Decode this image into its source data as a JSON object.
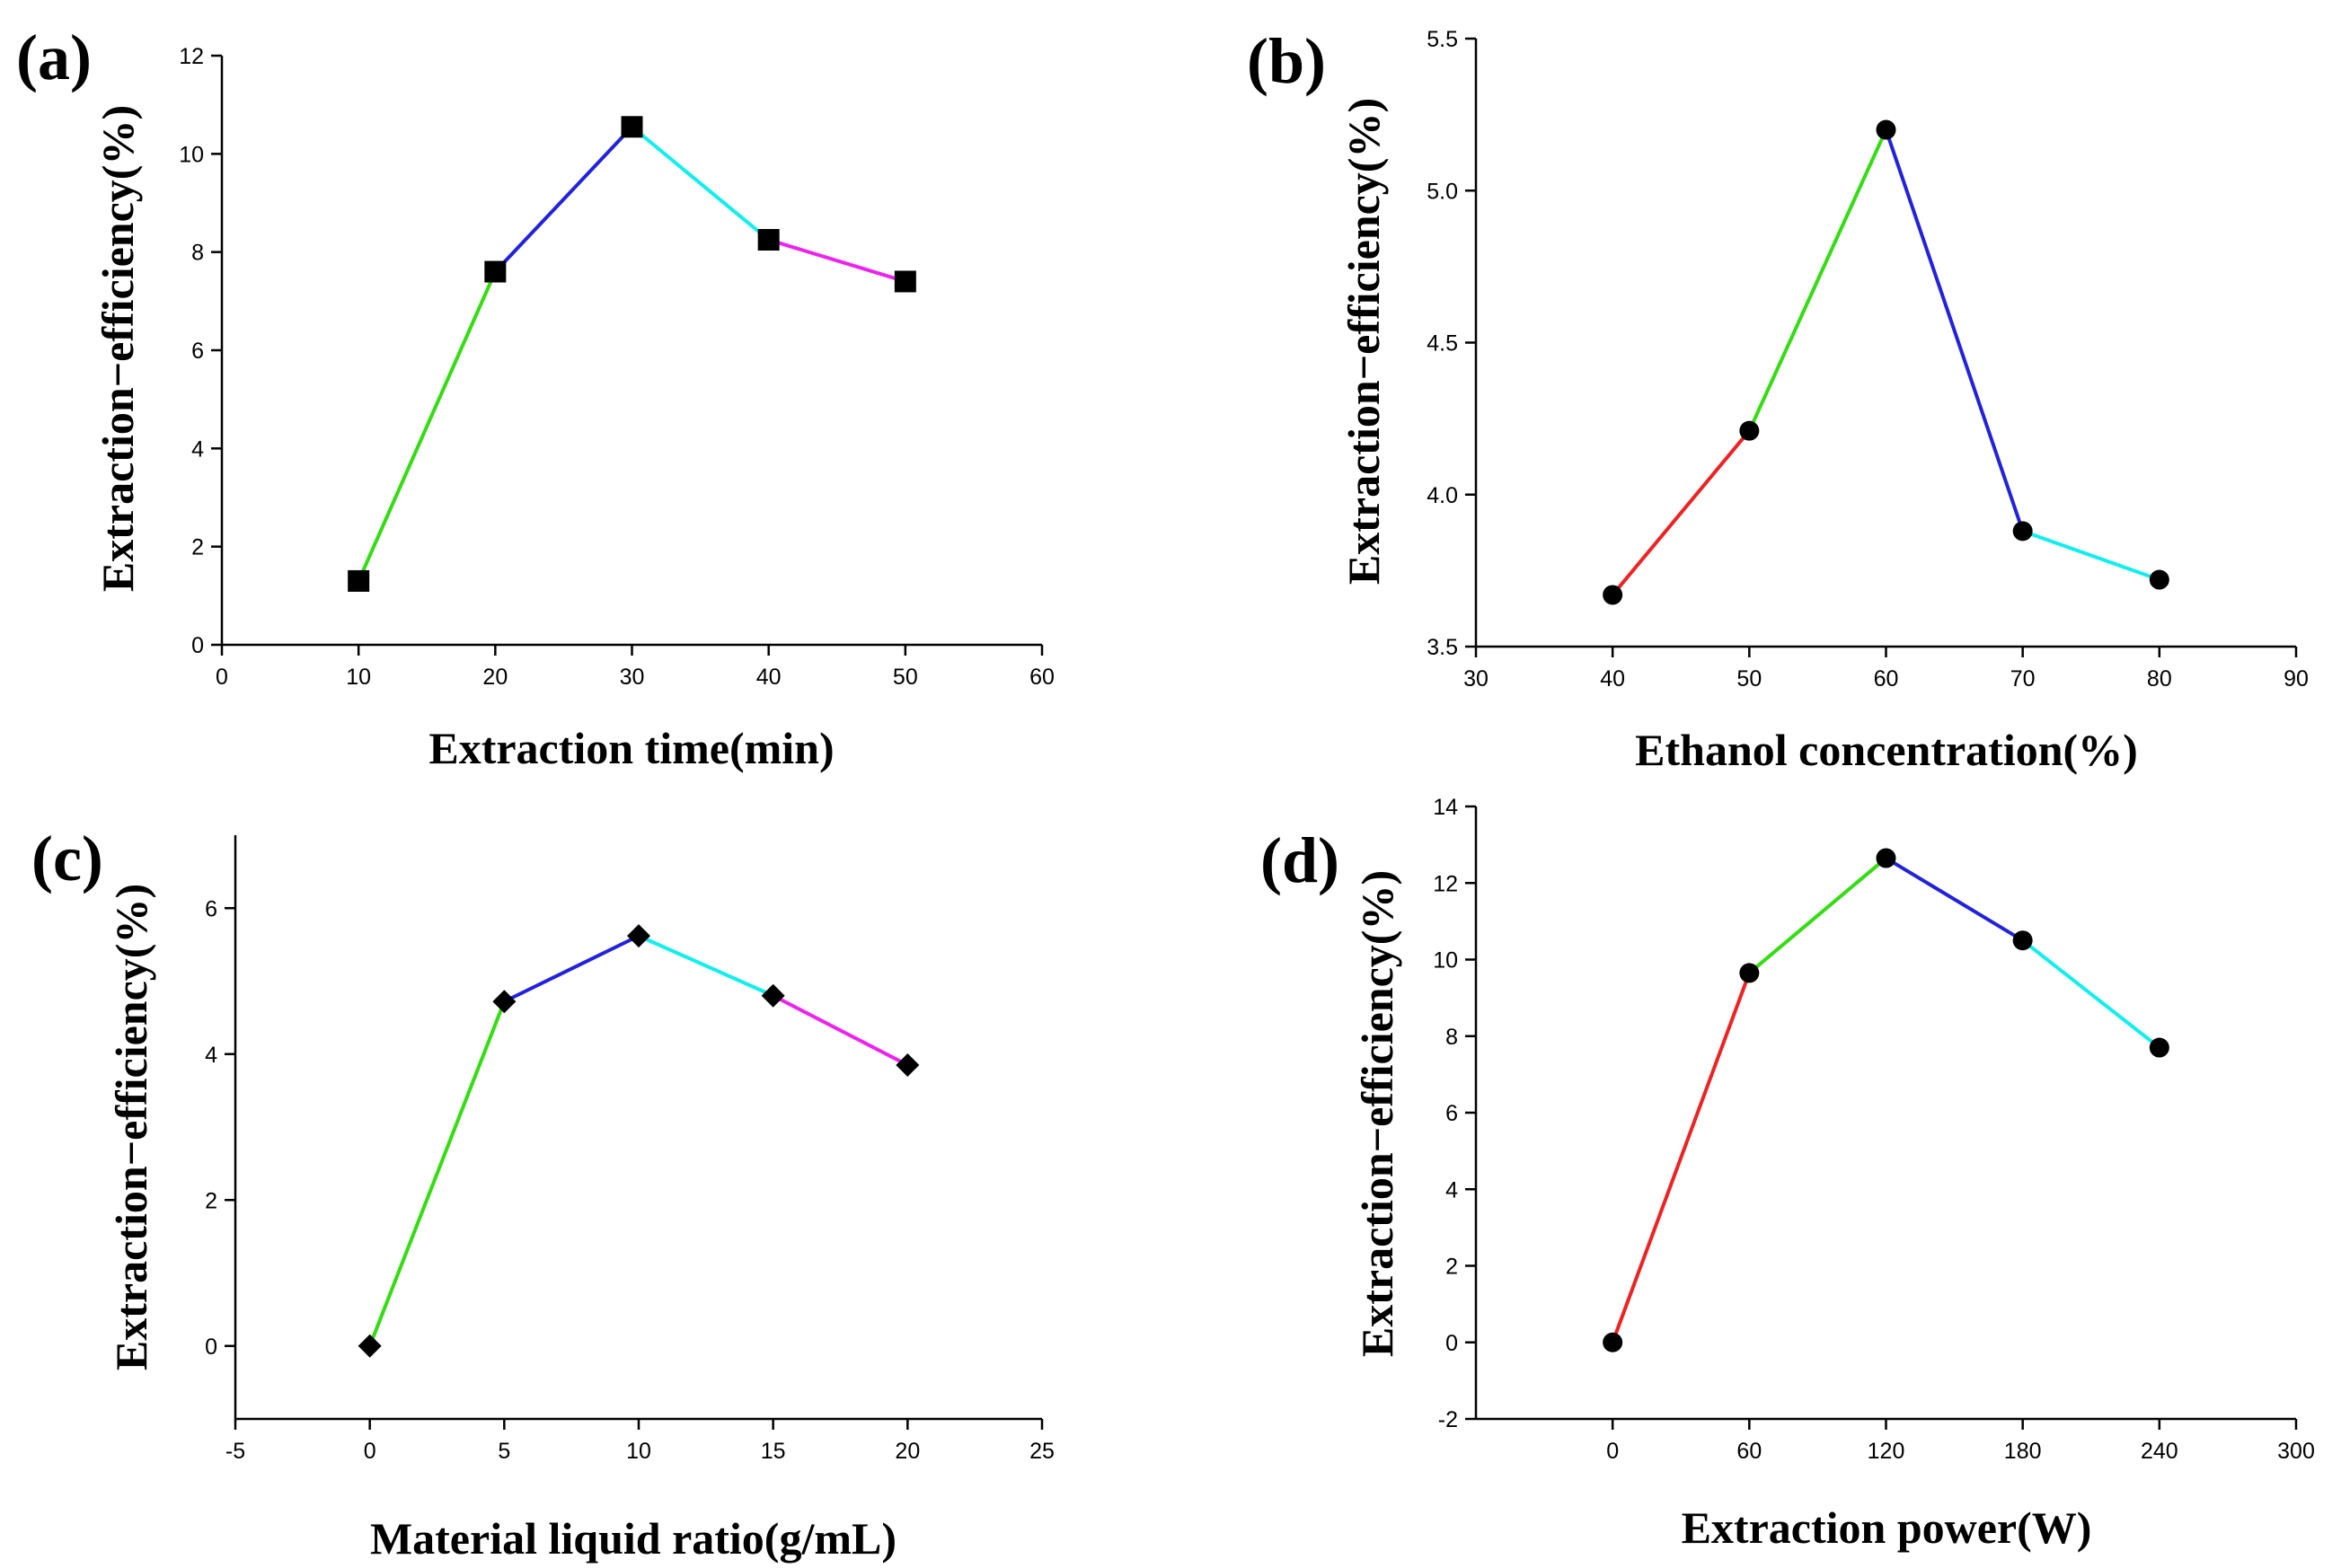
{
  "chart_data": [
    {
      "panel_label": "(a)",
      "type": "line",
      "xlabel": "Extraction time(min)",
      "ylabel": "Extraction−efficiency(%)",
      "xlim": [
        0,
        60
      ],
      "ylim": [
        0,
        12
      ],
      "xticks": [
        0,
        10,
        20,
        30,
        40,
        50,
        60
      ],
      "yticks": [
        0,
        2,
        4,
        6,
        8,
        10,
        12
      ],
      "x": [
        10,
        20,
        30,
        40,
        50
      ],
      "y": [
        1.3,
        7.6,
        10.55,
        8.25,
        7.4
      ],
      "marker": "square",
      "segment_colors": [
        "#33dd11",
        "#2222dd",
        "#11eeee",
        "#ee22ee"
      ]
    },
    {
      "panel_label": "(b)",
      "type": "line",
      "xlabel": "Ethanol concentration(%)",
      "ylabel": "Extraction−efficiency(%)",
      "xlim": [
        30,
        90
      ],
      "ylim": [
        3.5,
        5.5
      ],
      "xticks": [
        30,
        40,
        50,
        60,
        70,
        80,
        90
      ],
      "yticks": [
        3.5,
        4.0,
        4.5,
        5.0,
        5.5
      ],
      "ytick_labels": [
        "3.5",
        "4.0",
        "4.5",
        "5.0",
        "5.5"
      ],
      "x": [
        40,
        50,
        60,
        70,
        80
      ],
      "y": [
        3.67,
        4.21,
        5.2,
        3.88,
        3.72
      ],
      "marker": "circle",
      "segment_colors": [
        "#ee2222",
        "#33dd11",
        "#2222dd",
        "#11eeee"
      ]
    },
    {
      "panel_label": "(c)",
      "type": "line",
      "xlabel": "Material liquid ratio(g/mL)",
      "ylabel": "Extraction−efficiency(%)",
      "xlim": [
        -5,
        25
      ],
      "ylim": [
        -1,
        7
      ],
      "xticks": [
        -5,
        0,
        5,
        10,
        15,
        20,
        25
      ],
      "yticks": [
        0,
        2,
        4,
        6
      ],
      "x": [
        0,
        5,
        10,
        15,
        20
      ],
      "y": [
        0,
        4.72,
        5.62,
        4.8,
        3.85
      ],
      "marker": "diamond",
      "segment_colors": [
        "#33dd11",
        "#2222dd",
        "#11eeee",
        "#ee22ee"
      ]
    },
    {
      "panel_label": "(d)",
      "type": "line",
      "xlabel": "Extraction power(W)",
      "ylabel": "Extraction−efficiency(%)",
      "xlim": [
        -60,
        300
      ],
      "ylim": [
        -2,
        14
      ],
      "xticks": [
        0,
        60,
        120,
        180,
        240,
        300
      ],
      "yticks": [
        -2,
        0,
        2,
        4,
        6,
        8,
        10,
        12,
        14
      ],
      "x": [
        0,
        60,
        120,
        180,
        240
      ],
      "y": [
        0,
        9.65,
        12.65,
        10.5,
        7.7
      ],
      "marker": "circle",
      "segment_colors": [
        "#ee2222",
        "#33dd11",
        "#2222dd",
        "#11eeee"
      ]
    }
  ]
}
